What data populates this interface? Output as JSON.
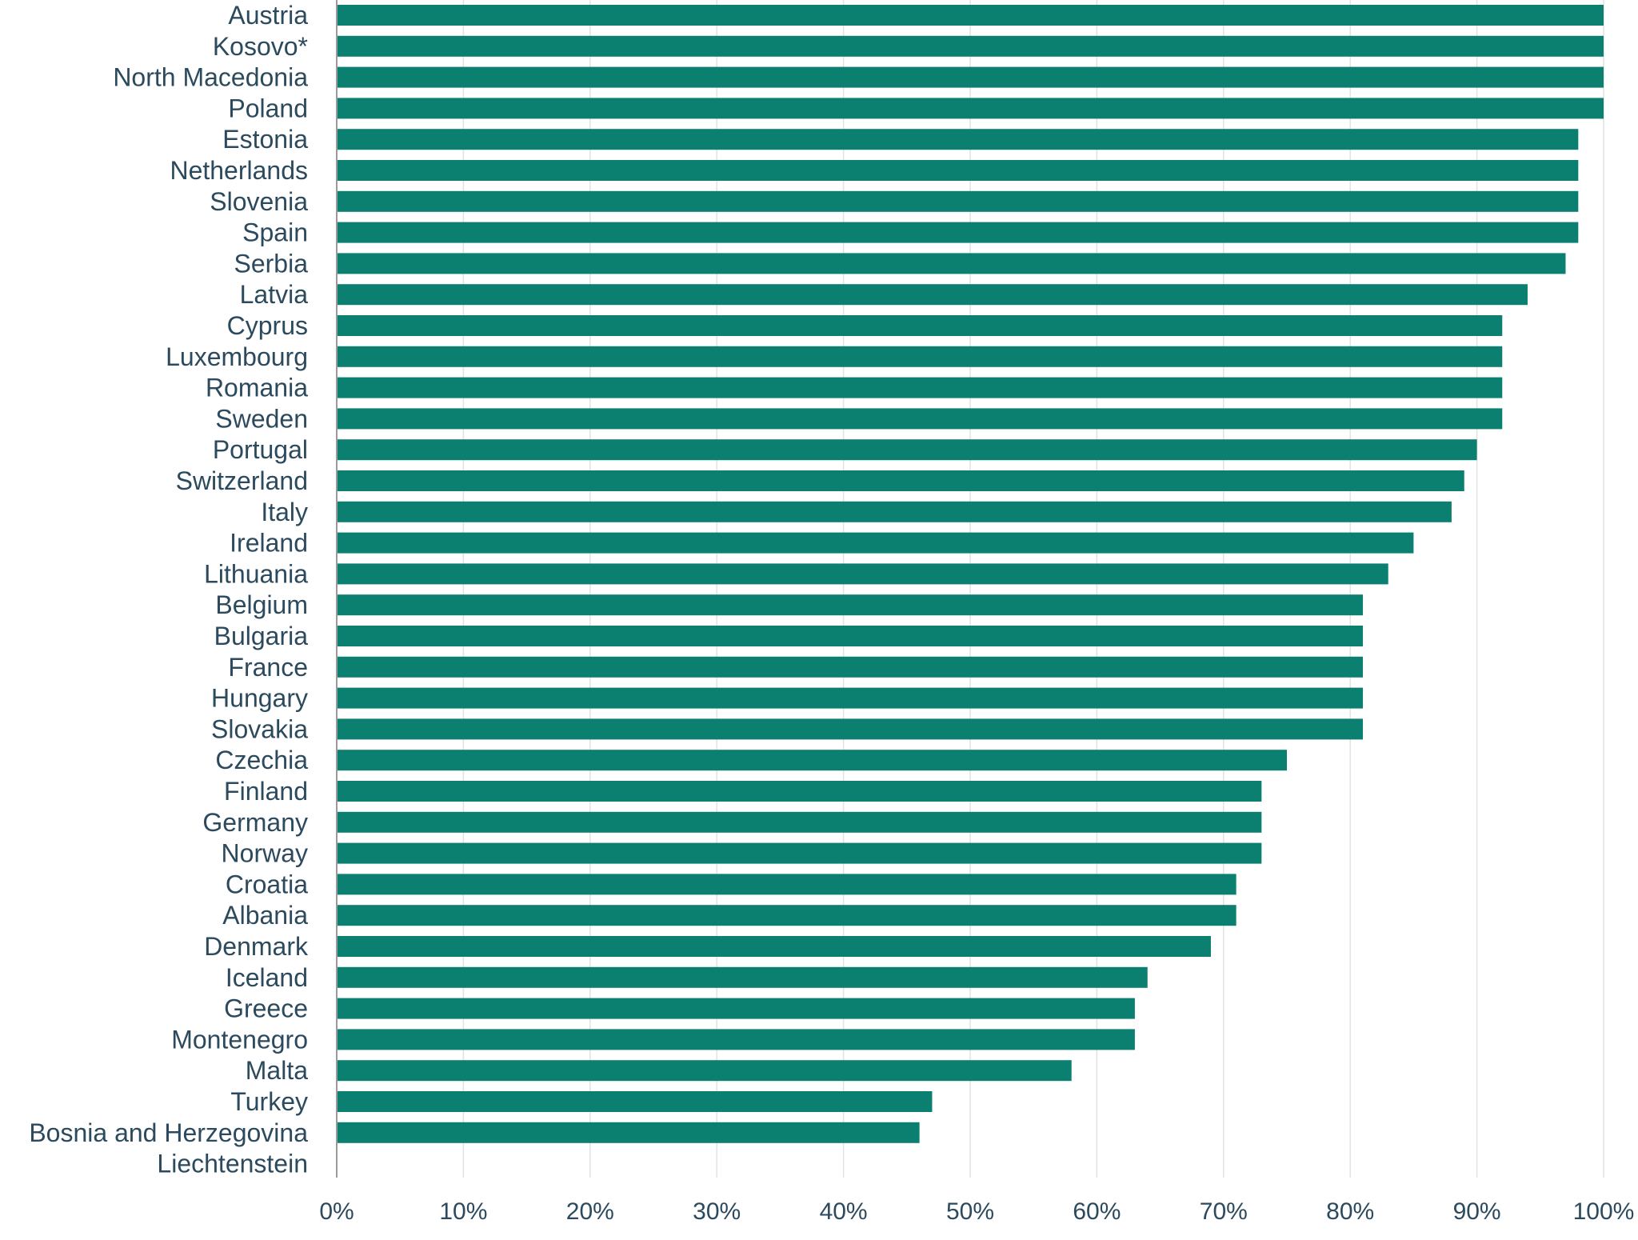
{
  "colors": {
    "bar": "#0c8070",
    "label": "#2c4a5e",
    "grid": "#e2e2e2",
    "axis": "#9a9a9a"
  },
  "chart_data": {
    "type": "bar",
    "orientation": "horizontal",
    "grid": true,
    "title": "",
    "xlabel": "",
    "ylabel": "",
    "xlim": [
      0,
      100
    ],
    "x_ticks": [
      "0%",
      "10%",
      "20%",
      "30%",
      "40%",
      "50%",
      "60%",
      "70%",
      "80%",
      "90%",
      "100%"
    ],
    "categories": [
      "Austria",
      "Kosovo*",
      "North Macedonia",
      "Poland",
      "Estonia",
      "Netherlands",
      "Slovenia",
      "Spain",
      "Serbia",
      "Latvia",
      "Cyprus",
      "Luxembourg",
      "Romania",
      "Sweden",
      "Portugal",
      "Switzerland",
      "Italy",
      "Ireland",
      "Lithuania",
      "Belgium",
      "Bulgaria",
      "France",
      "Hungary",
      "Slovakia",
      "Czechia",
      "Finland",
      "Germany",
      "Norway",
      "Croatia",
      "Albania",
      "Denmark",
      "Iceland",
      "Greece",
      "Montenegro",
      "Malta",
      "Turkey",
      "Bosnia and Herzegovina",
      "Liechtenstein"
    ],
    "values": [
      100,
      100,
      100,
      100,
      98,
      98,
      98,
      98,
      97,
      94,
      92,
      92,
      92,
      92,
      90,
      89,
      88,
      85,
      83,
      81,
      81,
      81,
      81,
      81,
      75,
      73,
      73,
      73,
      71,
      71,
      69,
      64,
      63,
      63,
      58,
      47,
      46,
      0
    ]
  }
}
